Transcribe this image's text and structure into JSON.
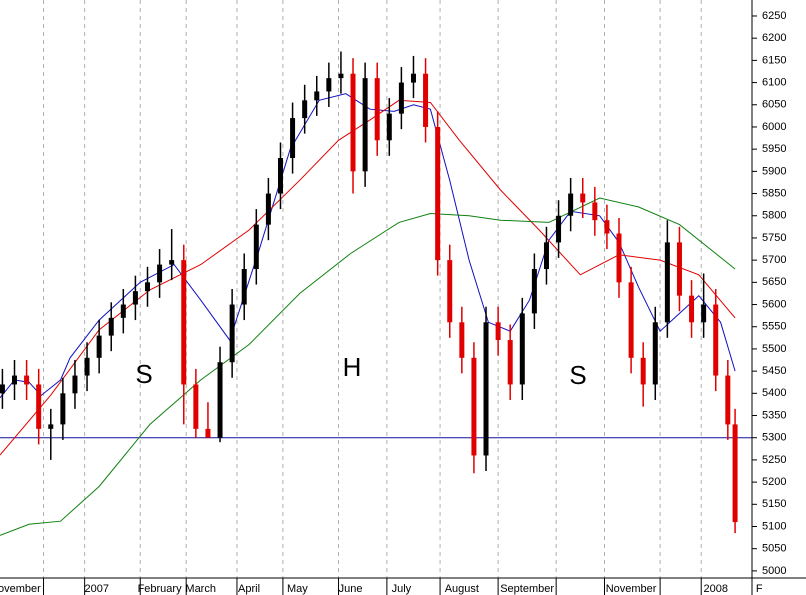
{
  "chart_data": {
    "type": "candlestick",
    "xlim": [
      0,
      311
    ],
    "ylim": [
      4984,
      6286
    ],
    "yticks": [
      5000,
      5050,
      5100,
      5150,
      5200,
      5250,
      5300,
      5350,
      5400,
      5450,
      5500,
      5550,
      5600,
      5650,
      5700,
      5750,
      5800,
      5850,
      5900,
      5950,
      6000,
      6050,
      6100,
      6150,
      6200,
      6250
    ],
    "grid": "x",
    "month_boundaries": [
      18,
      35,
      58,
      77,
      98,
      117,
      140,
      160,
      182,
      206,
      230,
      250,
      273,
      290
    ],
    "month_labels": [
      {
        "value": 8,
        "label": "ovember"
      },
      {
        "value": 40,
        "label": "2007"
      },
      {
        "value": 66,
        "label": "February"
      },
      {
        "value": 83,
        "label": "March"
      },
      {
        "value": 103,
        "label": "April"
      },
      {
        "value": 123,
        "label": "May"
      },
      {
        "value": 145,
        "label": "June"
      },
      {
        "value": 166,
        "label": "July"
      },
      {
        "value": 191,
        "label": "August"
      },
      {
        "value": 218,
        "label": "September"
      },
      {
        "value": 261,
        "label": "November"
      },
      {
        "value": 296,
        "label": "2008"
      },
      {
        "value": 314,
        "label": "F"
      }
    ],
    "up_color": "#000000",
    "down_color": "#e00000",
    "x": [
      1,
      6,
      11,
      16,
      21,
      26,
      31,
      36,
      41,
      46,
      51,
      56,
      61,
      66,
      71,
      76,
      81,
      86,
      91,
      96,
      101,
      106,
      111,
      116,
      121,
      126,
      131,
      136,
      141,
      146,
      151,
      156,
      161,
      166,
      171,
      176,
      181,
      186,
      191,
      196,
      201,
      206,
      211,
      216,
      221,
      226,
      231,
      236,
      241,
      246,
      251,
      256,
      261,
      266,
      271,
      276,
      281,
      286,
      291,
      296,
      301,
      304
    ],
    "open": [
      5400,
      5420,
      5440,
      5420,
      5320,
      5330,
      5400,
      5440,
      5480,
      5530,
      5570,
      5600,
      5630,
      5650,
      5690,
      5700,
      5420,
      5320,
      5300,
      5470,
      5600,
      5680,
      5780,
      5850,
      5930,
      6020,
      6060,
      6080,
      6110,
      6120,
      5900,
      6110,
      5970,
      6030,
      6100,
      6120,
      6000,
      5700,
      5560,
      5480,
      5260,
      5560,
      5520,
      5420,
      5580,
      5680,
      5740,
      5800,
      5850,
      5830,
      5790,
      5760,
      5650,
      5480,
      5420,
      5560,
      5740,
      5620,
      5560,
      5600,
      5440,
      5330
    ],
    "high": [
      5455,
      5475,
      5475,
      5455,
      5365,
      5435,
      5475,
      5515,
      5565,
      5605,
      5635,
      5665,
      5685,
      5725,
      5770,
      5735,
      5455,
      5380,
      5505,
      5635,
      5715,
      5815,
      5885,
      5965,
      6055,
      6095,
      6115,
      6145,
      6170,
      6155,
      6145,
      6145,
      6065,
      6135,
      6160,
      6155,
      6035,
      5735,
      5595,
      5515,
      5595,
      5595,
      5555,
      5615,
      5715,
      5775,
      5835,
      5885,
      5885,
      5865,
      5825,
      5795,
      5685,
      5515,
      5595,
      5790,
      5775,
      5655,
      5670,
      5635,
      5475,
      5365
    ],
    "low": [
      5365,
      5385,
      5385,
      5285,
      5250,
      5295,
      5365,
      5405,
      5445,
      5495,
      5535,
      5565,
      5595,
      5615,
      5655,
      5330,
      5300,
      5300,
      5290,
      5435,
      5565,
      5645,
      5745,
      5815,
      5895,
      5985,
      6025,
      6045,
      6075,
      5850,
      5865,
      5935,
      5935,
      5995,
      6065,
      5965,
      5665,
      5525,
      5445,
      5220,
      5225,
      5485,
      5385,
      5385,
      5545,
      5645,
      5705,
      5765,
      5795,
      5755,
      5725,
      5615,
      5445,
      5370,
      5385,
      5525,
      5585,
      5525,
      5525,
      5405,
      5295,
      5085
    ],
    "close": [
      5420,
      5440,
      5420,
      5320,
      5330,
      5400,
      5440,
      5480,
      5530,
      5570,
      5600,
      5630,
      5650,
      5690,
      5700,
      5420,
      5320,
      5300,
      5470,
      5600,
      5680,
      5780,
      5850,
      5930,
      6020,
      6060,
      6080,
      6110,
      6120,
      5900,
      6110,
      5970,
      6030,
      6100,
      6120,
      6000,
      5700,
      5560,
      5480,
      5260,
      5560,
      5520,
      5420,
      5580,
      5680,
      5740,
      5800,
      5850,
      5830,
      5790,
      5760,
      5650,
      5480,
      5420,
      5560,
      5740,
      5620,
      5560,
      5600,
      5440,
      5330,
      5110
    ],
    "lines": [
      {
        "color": "#1010c0",
        "x": [
          0,
          6,
          12,
          17,
          25,
          29,
          41,
          58,
          72,
          83,
          95,
          107,
          120,
          132,
          143,
          153,
          163,
          171,
          178,
          186,
          194,
          202,
          211,
          219,
          227,
          236,
          248,
          256,
          264,
          273,
          281,
          289,
          298,
          304
        ],
        "values": [
          5390,
          5430,
          5425,
          5395,
          5430,
          5480,
          5565,
          5650,
          5690,
          5610,
          5520,
          5720,
          5950,
          6060,
          6075,
          6040,
          6035,
          6050,
          6040,
          5880,
          5700,
          5560,
          5540,
          5610,
          5745,
          5810,
          5800,
          5740,
          5640,
          5540,
          5580,
          5620,
          5560,
          5450
        ]
      },
      {
        "color": "#e00000",
        "x": [
          0,
          21,
          41,
          62,
          83,
          103,
          124,
          140,
          153,
          165,
          178,
          190,
          207,
          223,
          240,
          256,
          273,
          289,
          304
        ],
        "values": [
          5261,
          5396,
          5543,
          5633,
          5690,
          5768,
          5880,
          5970,
          6016,
          6060,
          6055,
          5970,
          5858,
          5768,
          5667,
          5712,
          5700,
          5667,
          5570
        ]
      },
      {
        "color": "#108010",
        "x": [
          0,
          12,
          25,
          41,
          62,
          83,
          103,
          124,
          145,
          165,
          178,
          194,
          207,
          227,
          248,
          264,
          281,
          304
        ],
        "values": [
          5080,
          5105,
          5112,
          5190,
          5330,
          5430,
          5510,
          5625,
          5715,
          5785,
          5805,
          5800,
          5790,
          5785,
          5840,
          5820,
          5780,
          5680
        ]
      }
    ],
    "hline": {
      "value": 5300,
      "color": "#1010a0"
    },
    "annotations": [
      "S",
      "H",
      "S"
    ],
    "annotation_color": "#1a1ae0"
  }
}
